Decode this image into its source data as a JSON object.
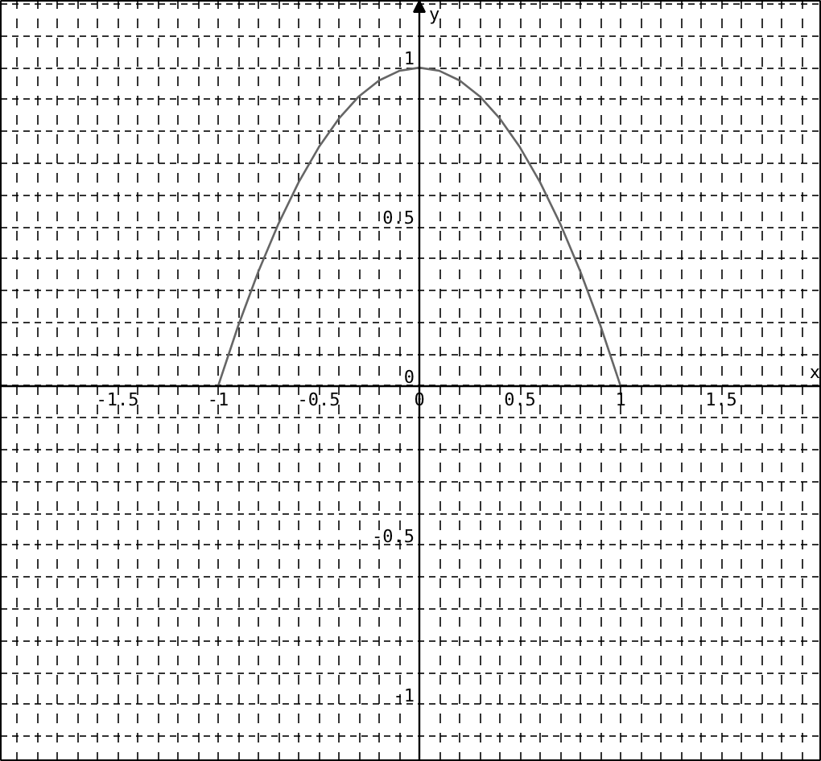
{
  "chart_data": {
    "type": "line",
    "xlabel": "x",
    "ylabel": "y",
    "x": [
      -1,
      -0.9,
      -0.8,
      -0.7,
      -0.6,
      -0.5,
      -0.4,
      -0.3,
      -0.2,
      -0.1,
      0,
      0.1,
      0.2,
      0.3,
      0.4,
      0.5,
      0.6,
      0.7,
      0.8,
      0.9,
      1
    ],
    "series": [
      {
        "color": "#666666",
        "values": [
          0,
          0.19,
          0.36,
          0.51,
          0.64,
          0.75,
          0.84,
          0.91,
          0.96,
          0.99,
          1,
          0.99,
          0.96,
          0.91,
          0.84,
          0.75,
          0.64,
          0.51,
          0.36,
          0.19,
          0
        ]
      }
    ],
    "xlim": [
      -2.08,
      2.0
    ],
    "ylim": [
      -1.18,
      1.21
    ],
    "xticks": [
      -1.5,
      -1,
      -0.5,
      0,
      0.5,
      1,
      1.5
    ],
    "yticks": [
      -1,
      -0.5,
      0,
      0.5,
      1
    ],
    "grid": true,
    "marker": "none",
    "line_style": "solid"
  }
}
